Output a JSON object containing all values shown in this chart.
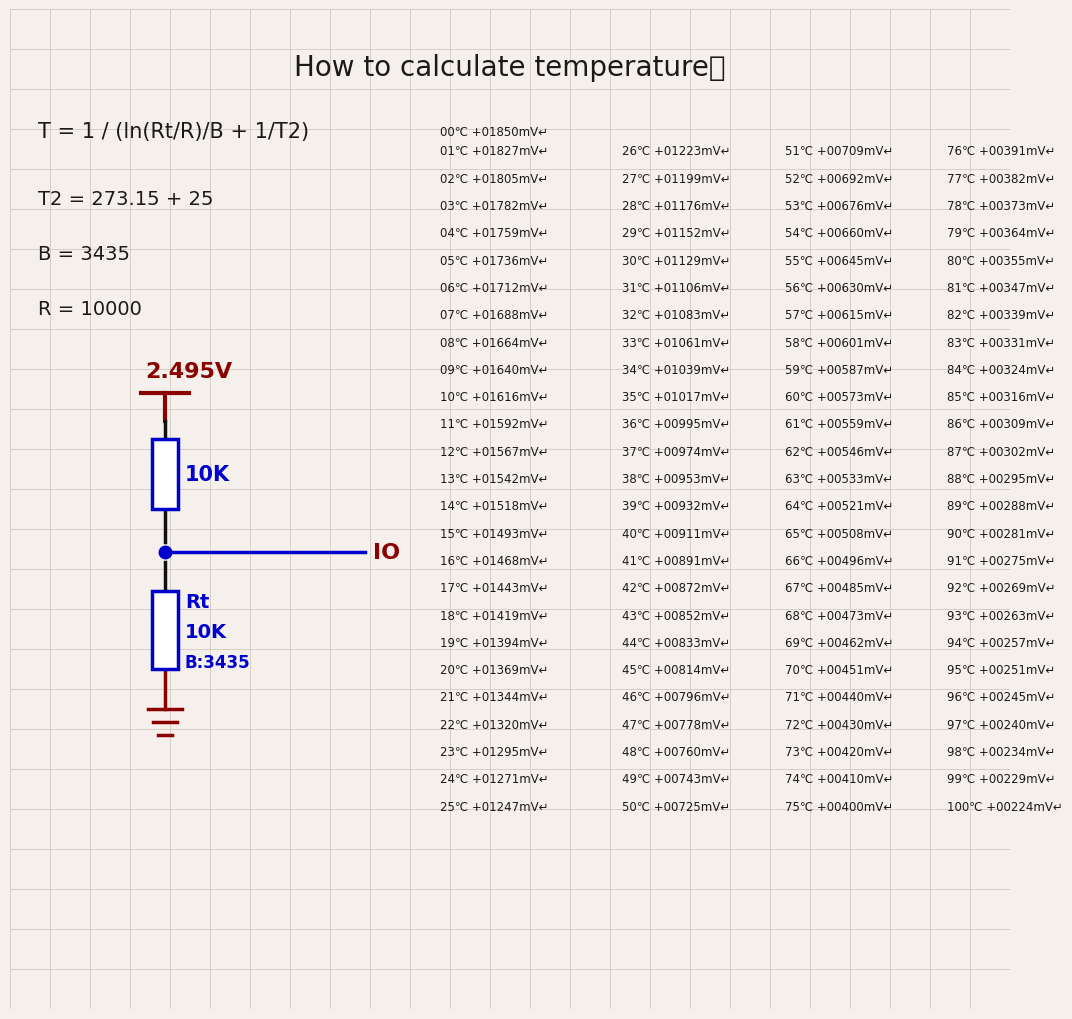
{
  "title": "How to calculate temperature！",
  "formula": "T = 1 / (ln(Rt/R)/B + 1/T2)",
  "t2_eq": "T2 = 273.15 + 25",
  "b_eq": "B = 3435",
  "r_eq": "R = 10000",
  "voltage_label": "2.495V",
  "resistor1_label": "10K",
  "resistor2_label1": "Rt",
  "resistor2_label2": "10K",
  "resistor2_label3": "B:3435",
  "io_label": "IO",
  "bg_color": "#f5f0eb",
  "grid_color": "#d0c8c0",
  "dark_red": "#8B0000",
  "blue": "#0000CC",
  "text_color": "#1a1a1a",
  "table_data": [
    [
      "00℃",
      "+01850mV"
    ],
    [
      "01℃",
      "+01827mV"
    ],
    [
      "02℃",
      "+01805mV"
    ],
    [
      "03℃",
      "+01782mV"
    ],
    [
      "04℃",
      "+01759mV"
    ],
    [
      "05℃",
      "+01736mV"
    ],
    [
      "06℃",
      "+01712mV"
    ],
    [
      "07℃",
      "+01688mV"
    ],
    [
      "08℃",
      "+01664mV"
    ],
    [
      "09℃",
      "+01640mV"
    ],
    [
      "10℃",
      "+01616mV"
    ],
    [
      "11℃",
      "+01592mV"
    ],
    [
      "12℃",
      "+01567mV"
    ],
    [
      "13℃",
      "+01542mV"
    ],
    [
      "14℃",
      "+01518mV"
    ],
    [
      "15℃",
      "+01493mV"
    ],
    [
      "16℃",
      "+01468mV"
    ],
    [
      "17℃",
      "+01443mV"
    ],
    [
      "18℃",
      "+01419mV"
    ],
    [
      "19℃",
      "+01394mV"
    ],
    [
      "20℃",
      "+01369mV"
    ],
    [
      "21℃",
      "+01344mV"
    ],
    [
      "22℃",
      "+01320mV"
    ],
    [
      "23℃",
      "+01295mV"
    ],
    [
      "24℃",
      "+01271mV"
    ],
    [
      "25℃",
      "+01247mV"
    ],
    [
      "26℃",
      "+01223mV"
    ],
    [
      "27℃",
      "+01199mV"
    ],
    [
      "28℃",
      "+01176mV"
    ],
    [
      "29℃",
      "+01152mV"
    ],
    [
      "30℃",
      "+01129mV"
    ],
    [
      "31℃",
      "+01106mV"
    ],
    [
      "32℃",
      "+01083mV"
    ],
    [
      "33℃",
      "+01061mV"
    ],
    [
      "34℃",
      "+01039mV"
    ],
    [
      "35℃",
      "+01017mV"
    ],
    [
      "36℃",
      "+00995mV"
    ],
    [
      "37℃",
      "+00974mV"
    ],
    [
      "38℃",
      "+00953mV"
    ],
    [
      "39℃",
      "+00932mV"
    ],
    [
      "40℃",
      "+00911mV"
    ],
    [
      "41℃",
      "+00891mV"
    ],
    [
      "42℃",
      "+00872mV"
    ],
    [
      "43℃",
      "+00852mV"
    ],
    [
      "44℃",
      "+00833mV"
    ],
    [
      "45℃",
      "+00814mV"
    ],
    [
      "46℃",
      "+00796mV"
    ],
    [
      "47℃",
      "+00778mV"
    ],
    [
      "48℃",
      "+00760mV"
    ],
    [
      "49℃",
      "+00743mV"
    ],
    [
      "50℃",
      "+00725mV"
    ],
    [
      "51℃",
      "+00709mV"
    ],
    [
      "52℃",
      "+00692mV"
    ],
    [
      "53℃",
      "+00676mV"
    ],
    [
      "54℃",
      "+00660mV"
    ],
    [
      "55℃",
      "+00645mV"
    ],
    [
      "56℃",
      "+00630mV"
    ],
    [
      "57℃",
      "+00615mV"
    ],
    [
      "58℃",
      "+00601mV"
    ],
    [
      "59℃",
      "+00587mV"
    ],
    [
      "60℃",
      "+00573mV"
    ],
    [
      "61℃",
      "+00559mV"
    ],
    [
      "62℃",
      "+00546mV"
    ],
    [
      "63℃",
      "+00533mV"
    ],
    [
      "64℃",
      "+00521mV"
    ],
    [
      "65℃",
      "+00508mV"
    ],
    [
      "66℃",
      "+00496mV"
    ],
    [
      "67℃",
      "+00485mV"
    ],
    [
      "68℃",
      "+00473mV"
    ],
    [
      "69℃",
      "+00462mV"
    ],
    [
      "70℃",
      "+00451mV"
    ],
    [
      "71℃",
      "+00440mV"
    ],
    [
      "72℃",
      "+00430mV"
    ],
    [
      "73℃",
      "+00420mV"
    ],
    [
      "74℃",
      "+00410mV"
    ],
    [
      "75℃",
      "+00400mV"
    ],
    [
      "76℃",
      "+00391mV"
    ],
    [
      "77℃",
      "+00382mV"
    ],
    [
      "78℃",
      "+00373mV"
    ],
    [
      "79℃",
      "+00364mV"
    ],
    [
      "80℃",
      "+00355mV"
    ],
    [
      "81℃",
      "+00347mV"
    ],
    [
      "82℃",
      "+00339mV"
    ],
    [
      "83℃",
      "+00331mV"
    ],
    [
      "84℃",
      "+00324mV"
    ],
    [
      "85℃",
      "+00316mV"
    ],
    [
      "86℃",
      "+00309mV"
    ],
    [
      "87℃",
      "+00302mV"
    ],
    [
      "88℃",
      "+00295mV"
    ],
    [
      "89℃",
      "+00288mV"
    ],
    [
      "90℃",
      "+00281mV"
    ],
    [
      "91℃",
      "+00275mV"
    ],
    [
      "92℃",
      "+00269mV"
    ],
    [
      "93℃",
      "+00263mV"
    ],
    [
      "94℃",
      "+00257mV"
    ],
    [
      "95℃",
      "+00251mV"
    ],
    [
      "96℃",
      "+00245mV"
    ],
    [
      "97℃",
      "+00240mV"
    ],
    [
      "98℃",
      "+00234mV"
    ],
    [
      "99℃",
      "+00229mV"
    ],
    [
      "100℃",
      "+00224mV"
    ]
  ]
}
